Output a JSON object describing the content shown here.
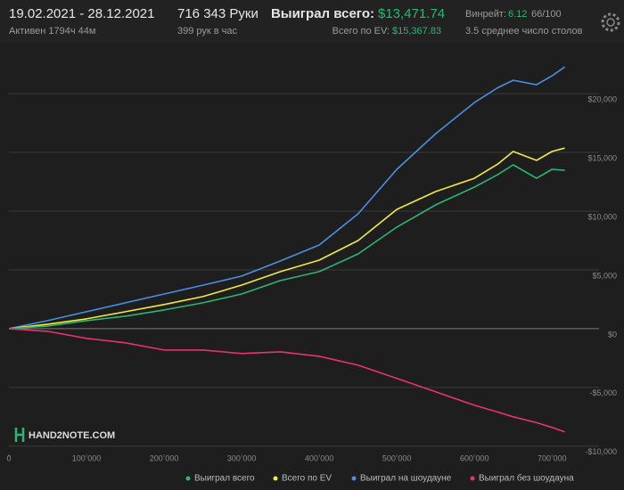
{
  "header": {
    "date_range": "19.02.2021 - 28.12.2021",
    "active": "Активен 1794ч 44м",
    "hands": "716 343 Руки",
    "hands_per_hour": "399 рук в час",
    "won_label": "Выиграл всего:",
    "won_value": "$13,471.74",
    "ev_label": "Всего по EV:",
    "ev_value": "$15,367.83",
    "winrate_label": "Винрейт:",
    "winrate_value": "6.12",
    "winrate_unit": "66/100",
    "tables": "3.5 среднее число столов"
  },
  "logo": "HAND2NOTE.COM",
  "chart_data": {
    "type": "line",
    "x": [
      0,
      50000,
      100000,
      150000,
      200000,
      250000,
      300000,
      350000,
      400000,
      450000,
      500000,
      550000,
      600000,
      630000,
      650000,
      680000,
      700000,
      716343
    ],
    "xlim": [
      0,
      756000
    ],
    "xticks": [
      0,
      {
        "value": 100000,
        "label": "100 000"
      },
      {
        "value": 200000,
        "label": "200 000"
      },
      {
        "value": 300000,
        "label": "300 000"
      },
      {
        "value": 400000,
        "label": "400 000"
      },
      {
        "value": 500000,
        "label": "500 000"
      },
      {
        "value": 600000,
        "label": "600 000"
      },
      {
        "value": 700000,
        "label": "700 000"
      }
    ],
    "ylim": [
      -10700,
      23800
    ],
    "yticks": [
      {
        "value": -10000,
        "label": "-$10,000"
      },
      {
        "value": -5000,
        "label": "-$5,000"
      },
      {
        "value": 0,
        "label": "$0"
      },
      {
        "value": 5000,
        "label": "$5,000"
      },
      {
        "value": 10000,
        "label": "$10,000"
      },
      {
        "value": 15000,
        "label": "$15,000"
      },
      {
        "value": 20000,
        "label": "$20,000"
      }
    ],
    "grid": true,
    "series": [
      {
        "name": "Выиграл всего",
        "color": "#2bb673",
        "values": [
          0,
          230,
          680,
          1060,
          1590,
          2200,
          2950,
          4090,
          4850,
          6360,
          8640,
          10530,
          12050,
          13100,
          13940,
          12800,
          13560,
          13471.74
        ]
      },
      {
        "name": "Всего по EV",
        "color": "#f2eb3f",
        "values": [
          0,
          380,
          830,
          1440,
          2050,
          2730,
          3710,
          4850,
          5830,
          7500,
          10150,
          11670,
          12800,
          14000,
          15080,
          14320,
          15080,
          15367.83
        ]
      },
      {
        "name": "Выиграл на шоудауне",
        "color": "#4a90e2",
        "values": [
          0,
          680,
          1440,
          2200,
          2950,
          3700,
          4470,
          5760,
          7120,
          9770,
          13560,
          16590,
          19240,
          20500,
          21140,
          20760,
          21520,
          22270
        ]
      },
      {
        "name": "Выиграл без шоудауна",
        "color": "#e8336e",
        "values": [
          0,
          -230,
          -830,
          -1210,
          -1820,
          -1820,
          -2120,
          -1970,
          -2350,
          -3110,
          -4240,
          -5380,
          -6520,
          -7100,
          -7500,
          -8000,
          -8410,
          -8790
        ]
      }
    ]
  }
}
